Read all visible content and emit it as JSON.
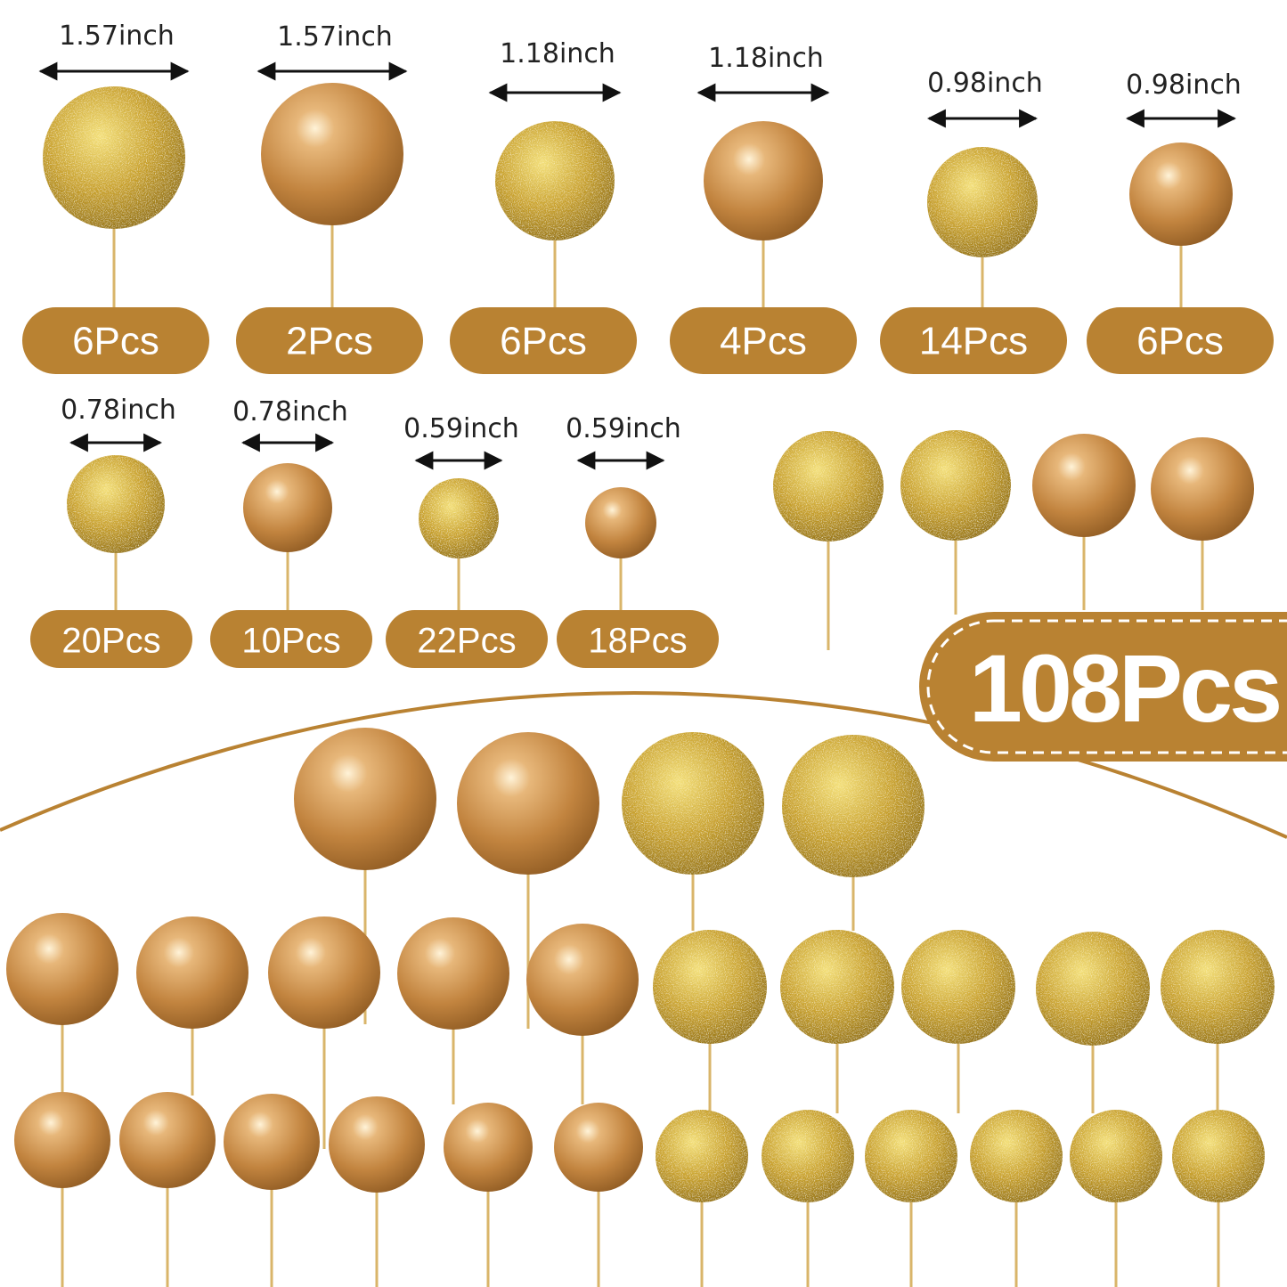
{
  "colors": {
    "brand": "#b98232",
    "pearl": "#c98a45",
    "glitter": "#c9a22e",
    "stick": "#d9b56a",
    "text": "#222222"
  },
  "total_badge": {
    "label": "108Pcs"
  },
  "items": [
    {
      "size": "1.57inch",
      "count": "6Pcs",
      "finish": "glitter"
    },
    {
      "size": "1.57inch",
      "count": "2Pcs",
      "finish": "pearl"
    },
    {
      "size": "1.18inch",
      "count": "6Pcs",
      "finish": "glitter"
    },
    {
      "size": "1.18inch",
      "count": "4Pcs",
      "finish": "pearl"
    },
    {
      "size": "0.98inch",
      "count": "14Pcs",
      "finish": "glitter"
    },
    {
      "size": "0.98inch",
      "count": "6Pcs",
      "finish": "pearl"
    },
    {
      "size": "0.78inch",
      "count": "20Pcs",
      "finish": "glitter"
    },
    {
      "size": "0.78inch",
      "count": "10Pcs",
      "finish": "pearl"
    },
    {
      "size": "0.59inch",
      "count": "22Pcs",
      "finish": "glitter"
    },
    {
      "size": "0.59inch",
      "count": "18Pcs",
      "finish": "pearl"
    }
  ]
}
